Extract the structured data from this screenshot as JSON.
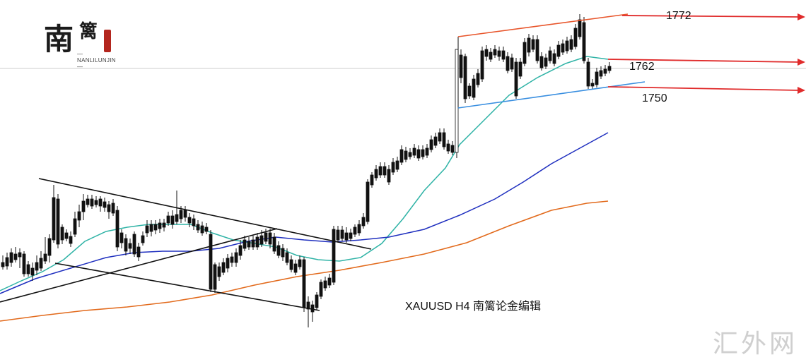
{
  "logo": {
    "mark": "南",
    "name": "篱",
    "subtitle": "—NANLILUNJIN—"
  },
  "watermark": "汇外网",
  "caption": "XAUUSD  H4  南篱论金编辑",
  "chart_data": {
    "type": "candlestick",
    "symbol": "XAUUSD",
    "timeframe": "H4",
    "price_levels": [
      {
        "label": "1772",
        "value": 1772,
        "color": "#e02b2b"
      },
      {
        "label": "1762",
        "value": 1762,
        "color": "#e02b2b"
      },
      {
        "label": "1750",
        "value": 1750,
        "color": "#e02b2b"
      }
    ],
    "moving_averages": [
      {
        "color": "#2fb3a6"
      },
      {
        "color": "#1f2fbf"
      },
      {
        "color": "#e26a1c"
      }
    ],
    "colors": {
      "bull": "#ffffff",
      "bear": "#111111",
      "wick": "#111111",
      "grid": "#cccccc"
    }
  }
}
